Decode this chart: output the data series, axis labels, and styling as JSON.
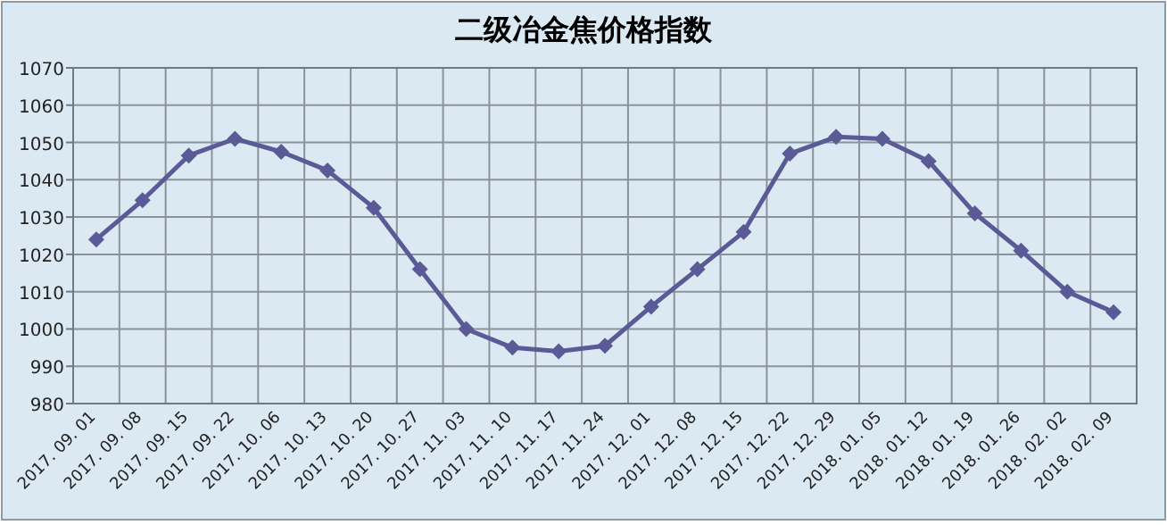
{
  "chart_data": {
    "type": "line",
    "title": "二级冶金焦价格指数",
    "categories": [
      "2017. 09. 01",
      "2017. 09. 08",
      "2017. 09. 15",
      "2017. 09. 22",
      "2017. 10. 06",
      "2017. 10. 13",
      "2017. 10. 20",
      "2017. 10. 27",
      "2017. 11. 03",
      "2017. 11. 10",
      "2017. 11. 17",
      "2017. 11. 24",
      "2017. 12. 01",
      "2017. 12. 08",
      "2017. 12. 15",
      "2017. 12. 22",
      "2017. 12. 29",
      "2018. 01. 05",
      "2018. 01. 12",
      "2018. 01. 19",
      "2018. 01. 26",
      "2018. 02. 02",
      "2018. 02. 09"
    ],
    "series": [
      {
        "color": "#5a5a96",
        "values": [
          1024,
          1034.5,
          1046.5,
          1051,
          1047.5,
          1042.5,
          1032.5,
          1016,
          1000,
          995,
          994,
          995.5,
          1006,
          1016,
          1026,
          1047,
          1051.5,
          1051,
          1045,
          1031,
          1021,
          1010,
          1004.5
        ]
      }
    ],
    "ylim": [
      980,
      1070
    ],
    "yticks": [
      980,
      990,
      1000,
      1010,
      1020,
      1030,
      1040,
      1050,
      1060,
      1070
    ],
    "grid": true,
    "marker": "diamond",
    "line_style": "solid"
  }
}
